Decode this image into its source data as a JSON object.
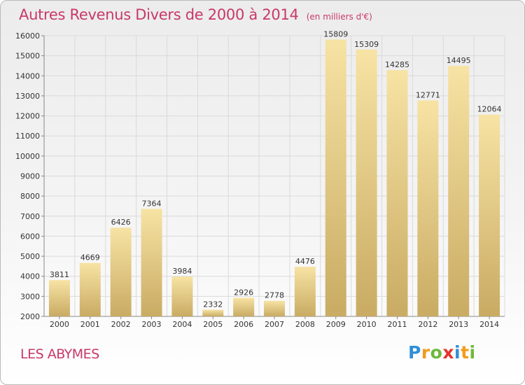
{
  "header": {
    "title": "Autres Revenus Divers de 2000 à 2014",
    "unit": "(en milliers d'€)"
  },
  "footer": {
    "place": "LES ABYMES"
  },
  "logo": {
    "text": "Proxiti",
    "letters": [
      {
        "ch": "P",
        "color": "#2f8fd6"
      },
      {
        "ch": "r",
        "color": "#f29b1d"
      },
      {
        "ch": "o",
        "color": "#6fb83a"
      },
      {
        "ch": "x",
        "color": "#e5322d"
      },
      {
        "ch": "i",
        "color": "#2f8fd6"
      },
      {
        "ch": "t",
        "color": "#f29b1d"
      },
      {
        "ch": "i",
        "color": "#6fb83a"
      }
    ]
  },
  "colors": {
    "accent": "#c8386a",
    "bar_light": "#f7e3a4",
    "bar_dark": "#c9ab63",
    "grid": "#dadada"
  },
  "chart_data": {
    "type": "bar",
    "title": "Autres Revenus Divers de 2000 à 2014",
    "ylabel": "(en milliers d'€)",
    "categories": [
      "2000",
      "2001",
      "2002",
      "2003",
      "2004",
      "2005",
      "2006",
      "2007",
      "2008",
      "2009",
      "2010",
      "2011",
      "2012",
      "2013",
      "2014"
    ],
    "values": [
      3811,
      4669,
      6426,
      7364,
      3984,
      2332,
      2926,
      2778,
      4476,
      15809,
      15309,
      14285,
      12771,
      14495,
      12064
    ],
    "ylim": [
      2000,
      16000
    ],
    "yticks": [
      2000,
      3000,
      4000,
      5000,
      6000,
      7000,
      8000,
      9000,
      10000,
      11000,
      12000,
      13000,
      14000,
      15000,
      16000
    ],
    "grid": true
  }
}
